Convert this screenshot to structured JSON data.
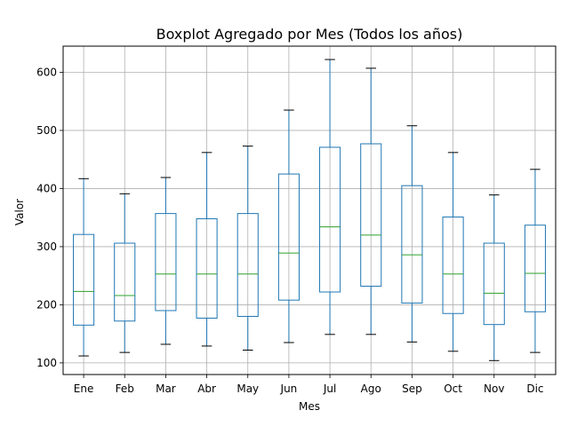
{
  "chart_data": {
    "type": "boxplot",
    "title": "Boxplot Agregado por Mes (Todos los años)",
    "xlabel": "Mes",
    "ylabel": "Valor",
    "categories": [
      "Ene",
      "Feb",
      "Mar",
      "Abr",
      "May",
      "Jun",
      "Jul",
      "Ago",
      "Sep",
      "Oct",
      "Nov",
      "Dic"
    ],
    "ylim": [
      80,
      645
    ],
    "yticks": [
      100,
      200,
      300,
      400,
      500,
      600
    ],
    "grid": true,
    "boxes": [
      {
        "whisker_low": 112,
        "q1": 165,
        "median": 223,
        "q3": 321,
        "whisker_high": 417
      },
      {
        "whisker_low": 118,
        "q1": 172,
        "median": 216,
        "q3": 306,
        "whisker_high": 391
      },
      {
        "whisker_low": 132,
        "q1": 190,
        "median": 253,
        "q3": 357,
        "whisker_high": 419
      },
      {
        "whisker_low": 129,
        "q1": 177,
        "median": 253,
        "q3": 348,
        "whisker_high": 462
      },
      {
        "whisker_low": 122,
        "q1": 180,
        "median": 253,
        "q3": 357,
        "whisker_high": 473
      },
      {
        "whisker_low": 135,
        "q1": 208,
        "median": 289,
        "q3": 425,
        "whisker_high": 535
      },
      {
        "whisker_low": 149,
        "q1": 222,
        "median": 334,
        "q3": 471,
        "whisker_high": 622
      },
      {
        "whisker_low": 149,
        "q1": 232,
        "median": 320,
        "q3": 477,
        "whisker_high": 607
      },
      {
        "whisker_low": 136,
        "q1": 203,
        "median": 286,
        "q3": 405,
        "whisker_high": 508
      },
      {
        "whisker_low": 120,
        "q1": 185,
        "median": 253,
        "q3": 351,
        "whisker_high": 462
      },
      {
        "whisker_low": 104,
        "q1": 166,
        "median": 220,
        "q3": 306,
        "whisker_high": 389
      },
      {
        "whisker_low": 118,
        "q1": 188,
        "median": 254,
        "q3": 337,
        "whisker_high": 433
      }
    ],
    "colors": {
      "box": "#1f77b4",
      "median": "#2ca02c",
      "whisker": "#1f77b4",
      "cap": "#000000",
      "grid": "#b0b0b0"
    }
  }
}
